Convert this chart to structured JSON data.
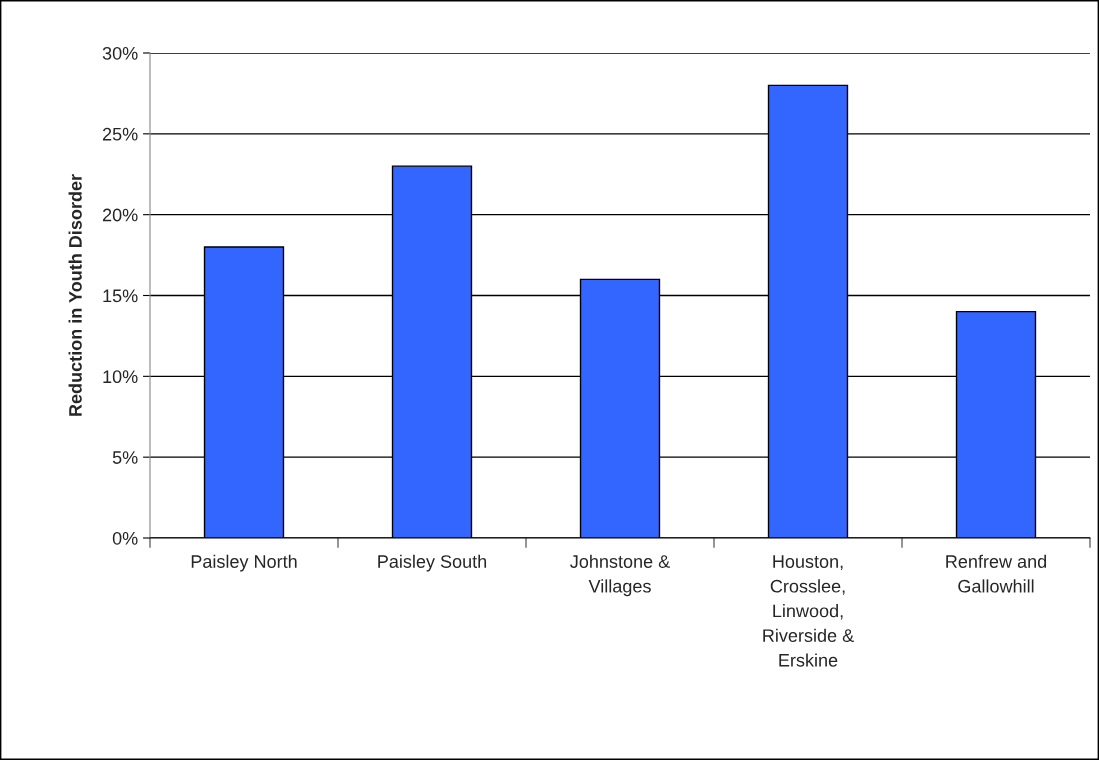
{
  "chart_data": {
    "type": "bar",
    "ylabel": "Reduction in Youth Disorder",
    "categories": [
      "Paisley North",
      "Paisley South",
      "Johnstone &\nVillages",
      "Houston,\nCrosslee,\nLinwood,\nRiverside &\nErskine",
      "Renfrew and\nGallowhill"
    ],
    "values": [
      18,
      23,
      16,
      28,
      14
    ],
    "color": "#3366ff",
    "ylim": [
      0,
      30
    ],
    "yticks": [
      {
        "value": 0,
        "label": "0%"
      },
      {
        "value": 5,
        "label": "5%"
      },
      {
        "value": 10,
        "label": "10%"
      },
      {
        "value": 15,
        "label": "15%"
      },
      {
        "value": 20,
        "label": "20%"
      },
      {
        "value": 25,
        "label": "25%"
      },
      {
        "value": 30,
        "label": "30%"
      }
    ],
    "grid": "y"
  }
}
